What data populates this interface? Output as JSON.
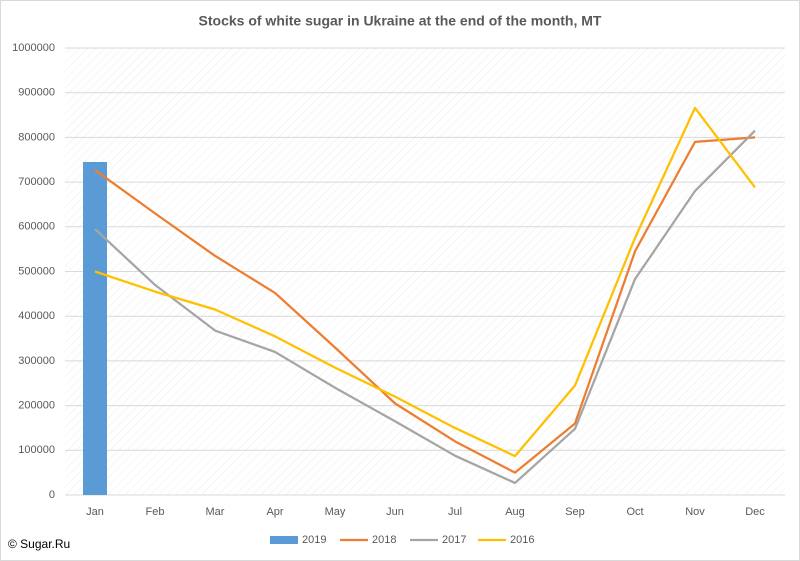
{
  "chart_data": {
    "type": "combo",
    "title": "Stocks of white sugar in Ukraine at the end of the month, MT",
    "categories": [
      "Jan",
      "Feb",
      "Mar",
      "Apr",
      "May",
      "Jun",
      "Jul",
      "Aug",
      "Sep",
      "Oct",
      "Nov",
      "Dec"
    ],
    "series": [
      {
        "name": "2019",
        "type": "bar",
        "color": "#5b9bd5",
        "values": [
          745000,
          null,
          null,
          null,
          null,
          null,
          null,
          null,
          null,
          null,
          null,
          null
        ]
      },
      {
        "name": "2018",
        "type": "line",
        "color": "#ed7d31",
        "values": [
          727000,
          630000,
          535000,
          452000,
          330000,
          205000,
          120000,
          50000,
          160000,
          545000,
          790000,
          800000
        ]
      },
      {
        "name": "2017",
        "type": "line",
        "color": "#a5a5a5",
        "values": [
          595000,
          470000,
          368000,
          320000,
          240000,
          165000,
          88000,
          27000,
          148000,
          483000,
          680000,
          815000
        ]
      },
      {
        "name": "2016",
        "type": "line",
        "color": "#ffc000",
        "values": [
          500000,
          455000,
          415000,
          355000,
          285000,
          220000,
          150000,
          87000,
          245000,
          575000,
          866000,
          688000
        ]
      }
    ],
    "ylim": [
      0,
      1000000
    ],
    "yticks": [
      0,
      100000,
      200000,
      300000,
      400000,
      500000,
      600000,
      700000,
      800000,
      900000,
      1000000
    ],
    "grid": true,
    "legend": "bottom",
    "source": "© Sugar.Ru"
  }
}
